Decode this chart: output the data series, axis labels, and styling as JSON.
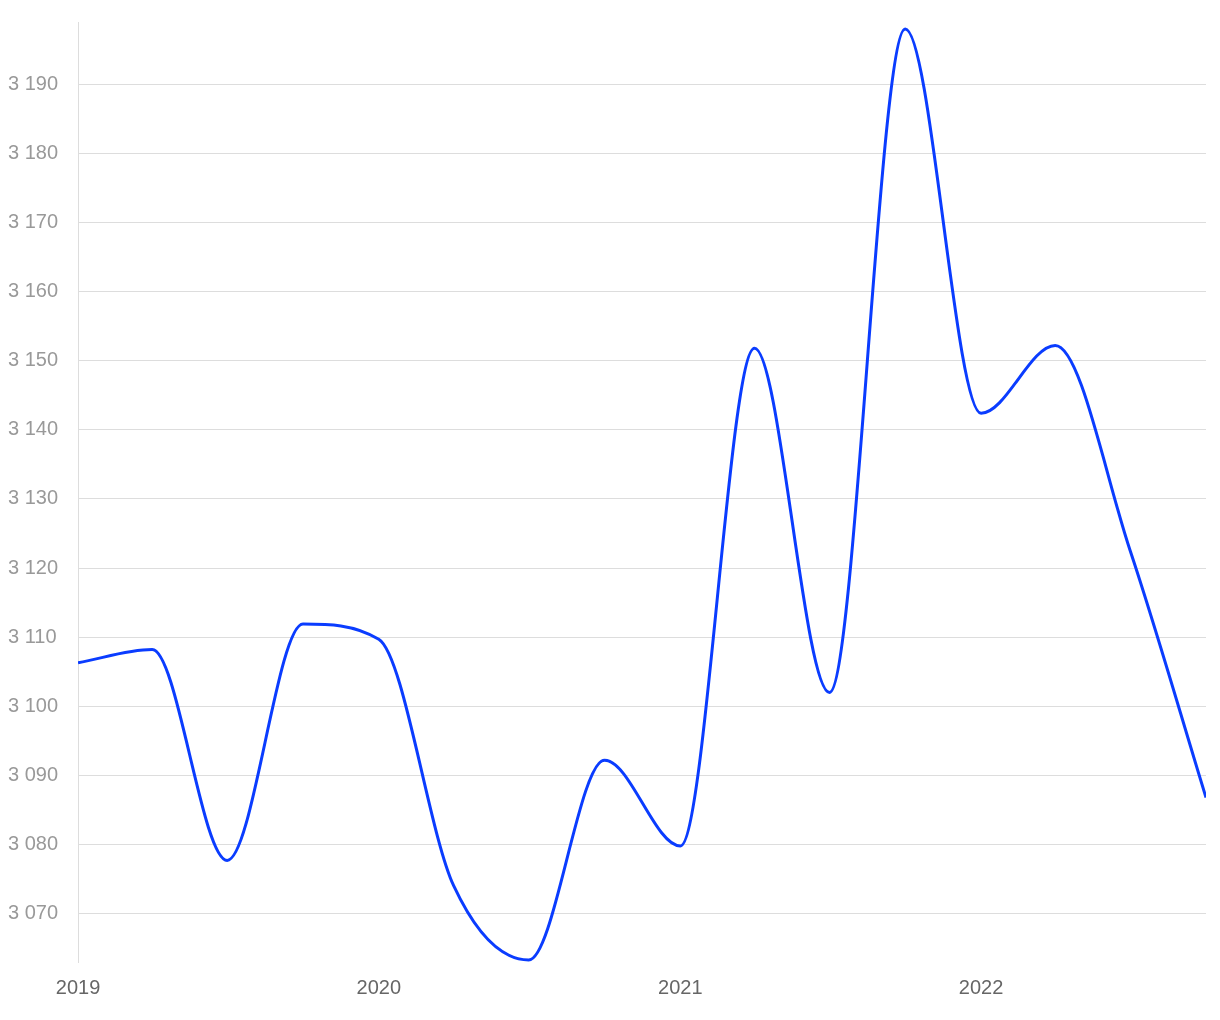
{
  "chart_data": {
    "type": "line",
    "x": [
      "2019-01",
      "2019-04",
      "2019-07",
      "2019-10",
      "2020-01",
      "2020-04",
      "2020-07",
      "2020-10",
      "2021-01",
      "2021-04",
      "2021-07",
      "2021-10",
      "2022-01",
      "2022-04",
      "2022-07",
      "2022-10"
    ],
    "series": [
      {
        "color": "#0a3cff",
        "values": [
          3106.3,
          3108.2,
          3077.7,
          3111.9,
          3109.7,
          3074,
          3063.3,
          3092.2,
          3079.8,
          3151.8,
          3102,
          3198,
          3142.4,
          3152.2,
          3122.5,
          3086.8
        ]
      }
    ],
    "xlim": [
      "2019-01",
      "2022-10"
    ],
    "xticks": [
      "2019",
      "2020",
      "2021",
      "2022"
    ],
    "yticks": [
      {
        "value": 3070,
        "label": "3 070"
      },
      {
        "value": 3080,
        "label": "3 080"
      },
      {
        "value": 3090,
        "label": "3 090"
      },
      {
        "value": 3100,
        "label": "3 100"
      },
      {
        "value": 3110,
        "label": "3 110"
      },
      {
        "value": 3120,
        "label": "3 120"
      },
      {
        "value": 3130,
        "label": "3 130"
      },
      {
        "value": 3140,
        "label": "3 140"
      },
      {
        "value": 3150,
        "label": "3 150"
      },
      {
        "value": 3160,
        "label": "3 160"
      },
      {
        "value": 3170,
        "label": "3 170"
      },
      {
        "value": 3180,
        "label": "3 180"
      },
      {
        "value": 3190,
        "label": "3 190"
      }
    ],
    "ylim": [
      3063,
      3199
    ],
    "grid": "y",
    "legend": false,
    "marker": "none",
    "line_style": "solid"
  }
}
